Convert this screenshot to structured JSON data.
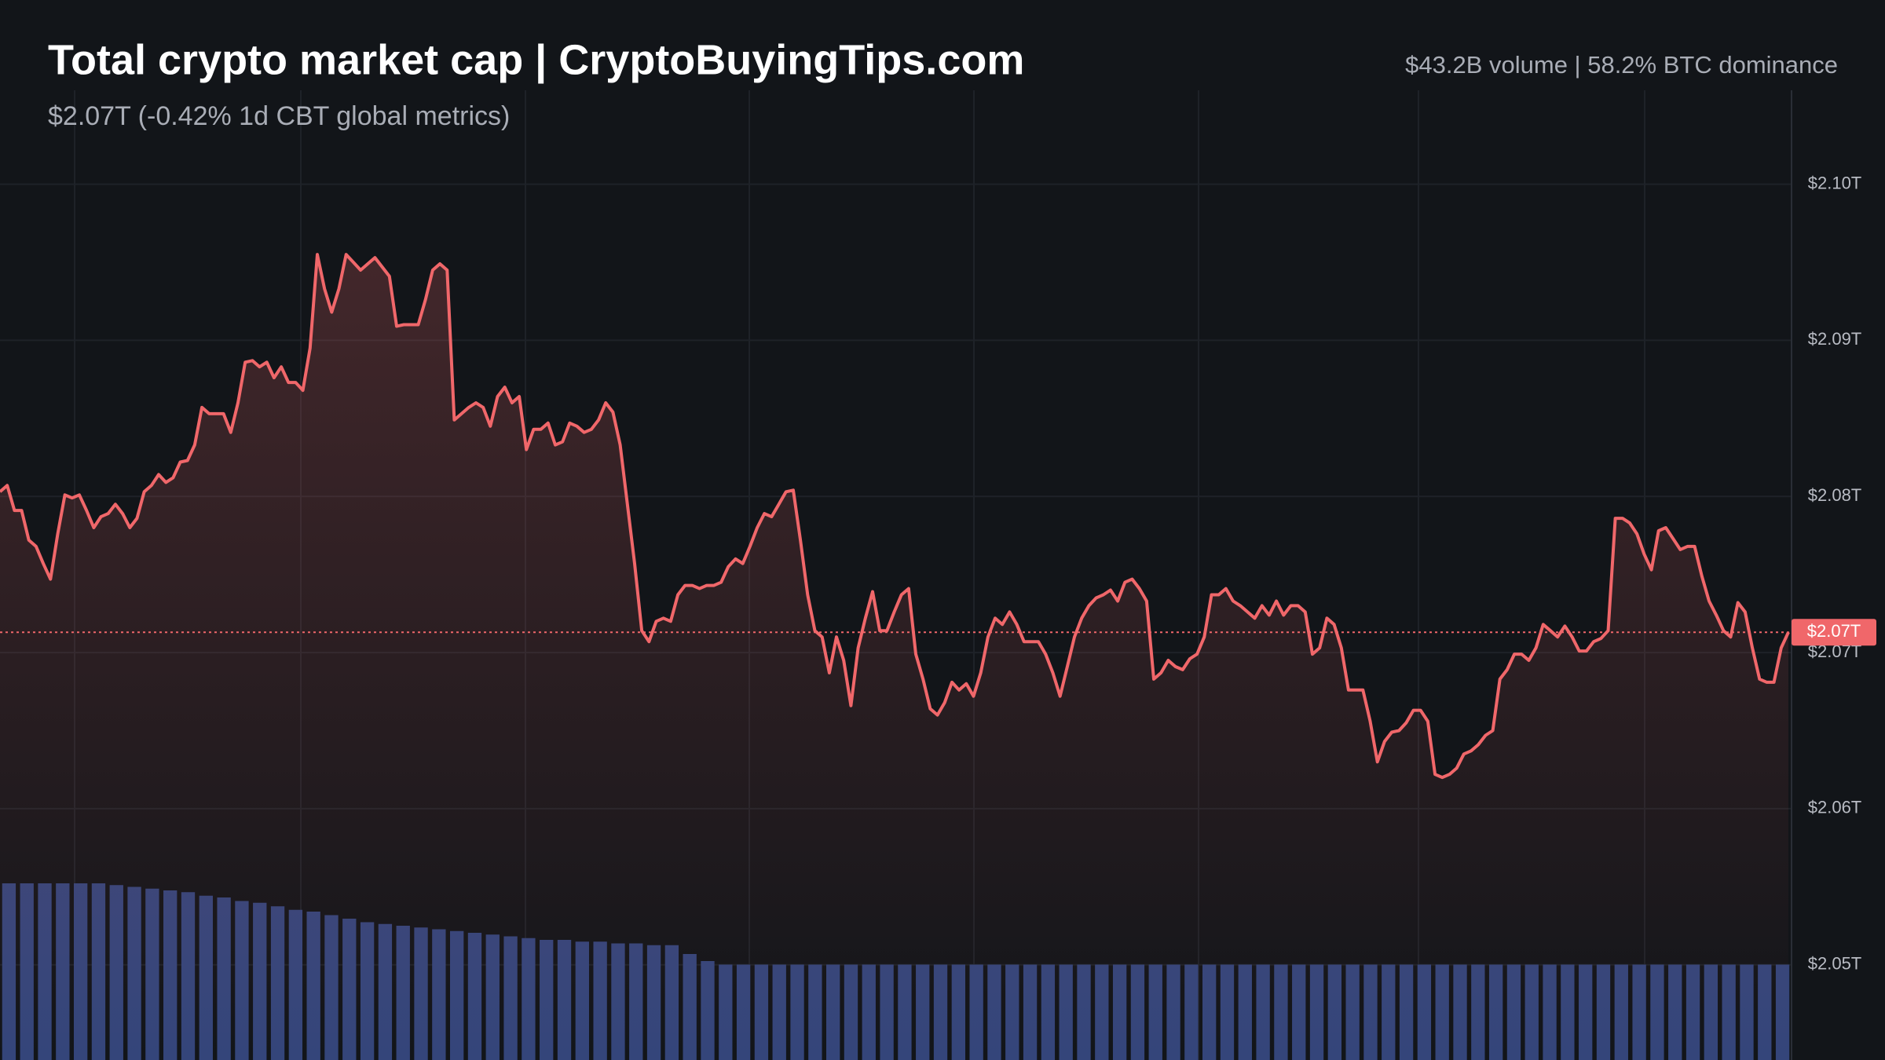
{
  "chart_data": {
    "type": "line",
    "title": "Total crypto market cap | CryptoBuyingTips.com",
    "subtitle": "$2.07T (-0.42% 1d CBT global metrics)",
    "stats": "$43.2B volume | 58.2% BTC dominance",
    "ylim": [
      2.0439,
      2.1118
    ],
    "yticks": [
      {
        "value": 2.05,
        "label": "$2.05T"
      },
      {
        "value": 2.06,
        "label": "$2.06T"
      },
      {
        "value": 2.07,
        "label": "$2.07T"
      },
      {
        "value": 2.08,
        "label": "$2.08T"
      },
      {
        "value": 2.09,
        "label": "$2.09T"
      },
      {
        "value": 2.1,
        "label": "$2.10T"
      }
    ],
    "y2lim": [
      0,
      600
    ],
    "grid": true,
    "series": [
      {
        "color": "#f0676a",
        "last_value_label": "$2.07T",
        "values": [
          2.0803,
          2.0807,
          2.0791,
          2.0791,
          2.0772,
          2.0768,
          2.0757,
          2.0747,
          2.0776,
          2.0801,
          2.0799,
          2.0801,
          2.0791,
          2.078,
          2.0787,
          2.0789,
          2.0795,
          2.0789,
          2.078,
          2.0786,
          2.0803,
          2.0807,
          2.0814,
          2.0809,
          2.0812,
          2.0822,
          2.0823,
          2.0833,
          2.0857,
          2.0853,
          2.0853,
          2.0853,
          2.0841,
          2.086,
          2.0886,
          2.0887,
          2.0883,
          2.0886,
          2.0876,
          2.0883,
          2.0873,
          2.0873,
          2.0868,
          2.0895,
          2.0955,
          2.0933,
          2.0918,
          2.0933,
          2.0955,
          2.095,
          2.0945,
          2.0949,
          2.0953,
          2.0947,
          2.0941,
          2.0909,
          2.091,
          2.091,
          2.091,
          2.0926,
          2.0945,
          2.0949,
          2.0945,
          2.0849,
          2.0853,
          2.0857,
          2.086,
          2.0857,
          2.0845,
          2.0864,
          2.087,
          2.086,
          2.0864,
          2.083,
          2.0843,
          2.0843,
          2.0847,
          2.0833,
          2.0835,
          2.0847,
          2.0845,
          2.0841,
          2.0843,
          2.0849,
          2.086,
          2.0854,
          2.0833,
          2.0795,
          2.0757,
          2.0714,
          2.0707,
          2.072,
          2.0722,
          2.072,
          2.0737,
          2.0743,
          2.0743,
          2.0741,
          2.0743,
          2.0743,
          2.0745,
          2.0755,
          2.076,
          2.0757,
          2.0768,
          2.078,
          2.0789,
          2.0787,
          2.0795,
          2.0803,
          2.0804,
          2.0772,
          2.0737,
          2.0714,
          2.071,
          2.0687,
          2.071,
          2.0695,
          2.0666,
          2.0703,
          2.0722,
          2.0739,
          2.0714,
          2.0714,
          2.0726,
          2.0737,
          2.0741,
          2.0699,
          2.0683,
          2.0664,
          2.066,
          2.0668,
          2.0681,
          2.0676,
          2.068,
          2.0672,
          2.0687,
          2.071,
          2.0722,
          2.0718,
          2.0726,
          2.0718,
          2.0707,
          2.0707,
          2.0707,
          2.0699,
          2.0687,
          2.0672,
          2.0691,
          2.071,
          2.0722,
          2.073,
          2.0735,
          2.0737,
          2.074,
          2.0733,
          2.0745,
          2.0747,
          2.0741,
          2.0733,
          2.0683,
          2.0687,
          2.0695,
          2.0691,
          2.0689,
          2.0696,
          2.0699,
          2.071,
          2.0737,
          2.0737,
          2.0741,
          2.0733,
          2.073,
          2.0726,
          2.0722,
          2.073,
          2.0724,
          2.0733,
          2.0724,
          2.073,
          2.073,
          2.0726,
          2.0699,
          2.0703,
          2.0722,
          2.0718,
          2.0703,
          2.0676,
          2.0676,
          2.0676,
          2.0656,
          2.063,
          2.0643,
          2.0649,
          2.065,
          2.0655,
          2.0663,
          2.0663,
          2.0656,
          2.0622,
          2.062,
          2.0622,
          2.0626,
          2.0635,
          2.0637,
          2.0641,
          2.0647,
          2.065,
          2.0683,
          2.0689,
          2.0699,
          2.0699,
          2.0695,
          2.0703,
          2.0718,
          2.0714,
          2.071,
          2.0717,
          2.071,
          2.0701,
          2.0701,
          2.0707,
          2.0709,
          2.0714,
          2.0786,
          2.0786,
          2.0783,
          2.0776,
          2.0763,
          2.0753,
          2.0778,
          2.078,
          2.0773,
          2.0766,
          2.0768,
          2.0768,
          2.0749,
          2.0733,
          2.0724,
          2.0714,
          2.071,
          2.0732,
          2.0726,
          2.0703,
          2.0683,
          2.0681,
          2.0681,
          2.0703,
          2.0713
        ]
      },
      {
        "type": "bar",
        "axis": "y2",
        "color": "#34457a",
        "values": [
          100,
          100,
          100,
          100,
          100,
          100,
          99,
          98,
          97,
          96,
          95,
          93,
          92,
          90,
          89,
          87,
          85,
          84,
          82,
          80,
          78,
          77,
          76,
          75,
          74,
          73,
          72,
          71,
          70,
          69,
          68,
          68,
          67,
          67,
          66,
          66,
          65,
          65,
          60,
          56,
          54,
          54,
          54,
          54,
          54,
          54,
          54,
          54,
          54,
          54,
          54,
          54,
          54,
          54,
          54,
          54,
          54,
          54,
          54,
          54,
          54,
          54,
          54,
          54,
          54,
          54,
          54,
          54,
          54,
          54,
          54,
          54,
          54,
          54,
          54,
          54,
          54,
          54,
          54,
          54,
          54,
          54,
          54,
          54,
          54,
          54,
          54,
          54,
          54,
          54,
          54,
          54,
          54,
          54,
          54,
          54,
          54,
          54,
          54,
          54
        ]
      }
    ]
  }
}
